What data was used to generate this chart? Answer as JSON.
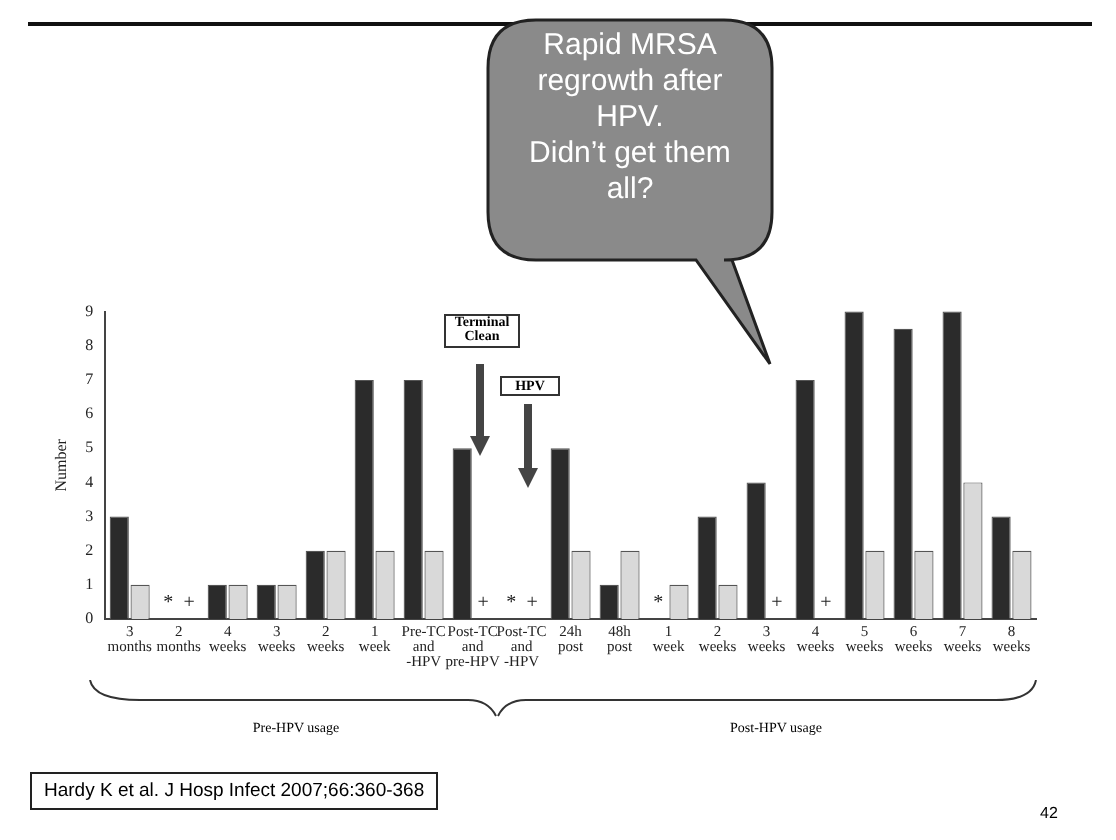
{
  "chart_data": {
    "type": "bar",
    "ylabel": "Number",
    "categories": [
      "3\nmonths",
      "2\nmonths",
      "4\nweeks",
      "3\nweeks",
      "2\nweeks",
      "1\nweek",
      "Pre-TC\nand\n-HPV",
      "Post-TC\nand\npre-HPV",
      "Post-TC\nand\n-HPV",
      "24h\npost",
      "48h\npost",
      "1\nweek",
      "2\nweeks",
      "3\nweeks",
      "4\nweeks",
      "5\nweeks",
      "6\nweeks",
      "7\nweeks",
      "8\nweeks"
    ],
    "series": [
      {
        "color": "#2b2b2b",
        "values": [
          3,
          0,
          1,
          1,
          2,
          7,
          7,
          5,
          0,
          5,
          1,
          0,
          3,
          4,
          7,
          9,
          8.5,
          9,
          3
        ]
      },
      {
        "color": "#d9d9d9",
        "values": [
          1,
          0,
          1,
          1,
          2,
          2,
          2,
          0,
          0,
          2,
          2,
          1,
          1,
          0,
          0,
          2,
          2,
          4,
          2
        ]
      }
    ],
    "ylim": [
      0,
      9
    ],
    "yticks": [
      0,
      1,
      2,
      3,
      4,
      5,
      6,
      7,
      8,
      9
    ],
    "grid": false,
    "legend": false,
    "annotations": [
      "Terminal\nClean",
      "HPV",
      "Rapid MRSA\nregrowth after\nHPV.\nDidn’t get them\nall?",
      "Pre-HPV usage",
      "Post-HPV usage",
      "Hardy K et al. J Hosp Infect 2007;66:360-368",
      "42",
      "*",
      "+",
      "+",
      "*",
      "+",
      "*",
      "+",
      "+"
    ]
  }
}
